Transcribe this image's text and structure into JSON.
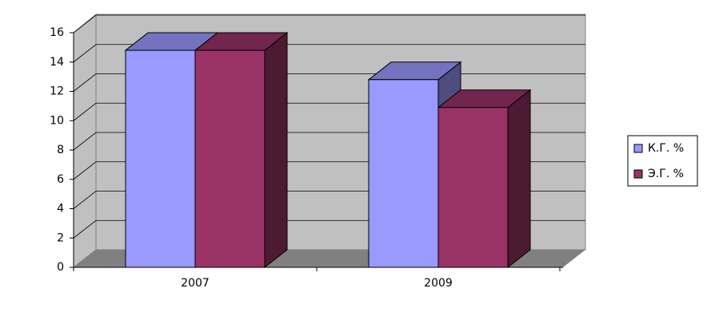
{
  "chart_data": {
    "type": "bar",
    "categories": [
      "2007",
      "2009"
    ],
    "series": [
      {
        "name": "К.Г. %",
        "color": "#9999ff",
        "values": [
          14.8,
          12.8
        ]
      },
      {
        "name": "Э.Г. %",
        "color": "#993366",
        "values": [
          14.8,
          10.9
        ]
      }
    ],
    "ylim": [
      0,
      16
    ],
    "yticks": [
      0,
      2,
      4,
      6,
      8,
      10,
      12,
      14,
      16
    ],
    "grid": true,
    "legend": "right"
  }
}
